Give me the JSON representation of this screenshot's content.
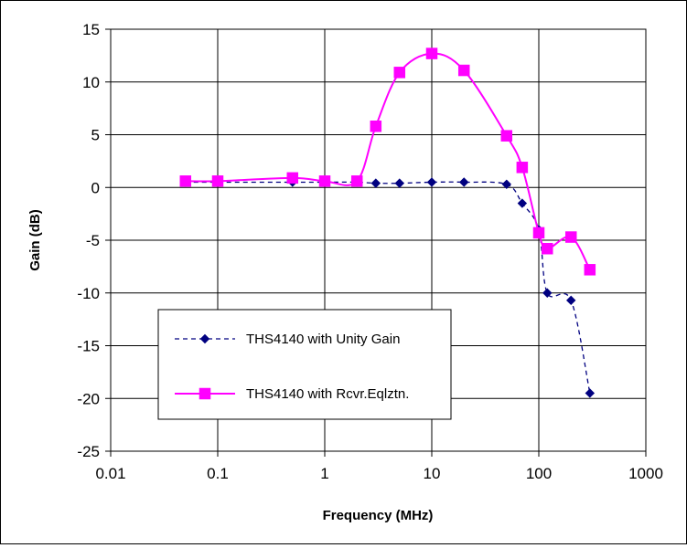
{
  "chart_data": {
    "type": "line",
    "xlabel": "Frequency (MHz)",
    "ylabel": "Gain (dB)",
    "x_scale": "log",
    "xlim": [
      0.01,
      1000
    ],
    "ylim": [
      -25,
      15
    ],
    "x_ticks": [
      "0.01",
      "0.1",
      "1",
      "10",
      "100",
      "1000"
    ],
    "y_ticks": [
      "15",
      "10",
      "5",
      "0",
      "-5",
      "-10",
      "-15",
      "-20",
      "-25"
    ],
    "grid": true,
    "legend_position": "lower-left",
    "series": [
      {
        "name": "THS4140 with Unity Gain",
        "color": "#000080",
        "line_style": "dashed",
        "marker": "diamond",
        "x": [
          0.05,
          0.1,
          0.5,
          1,
          2,
          3,
          5,
          10,
          20,
          50,
          70,
          100,
          120,
          200,
          300
        ],
        "y": [
          0.5,
          0.5,
          0.5,
          0.5,
          0.5,
          0.4,
          0.4,
          0.5,
          0.5,
          0.3,
          -1.5,
          -4.0,
          -10.0,
          -10.7,
          -19.5
        ]
      },
      {
        "name": "THS4140 with Rcvr.Eqlztn.",
        "color": "#ff00ff",
        "line_style": "solid",
        "marker": "square",
        "x": [
          0.05,
          0.1,
          0.5,
          1,
          2,
          3,
          5,
          10,
          20,
          50,
          70,
          100,
          120,
          200,
          300
        ],
        "y": [
          0.6,
          0.6,
          0.9,
          0.6,
          0.6,
          5.8,
          10.9,
          12.7,
          11.1,
          4.9,
          1.9,
          -4.3,
          -5.8,
          -4.7,
          -7.8
        ]
      }
    ]
  }
}
